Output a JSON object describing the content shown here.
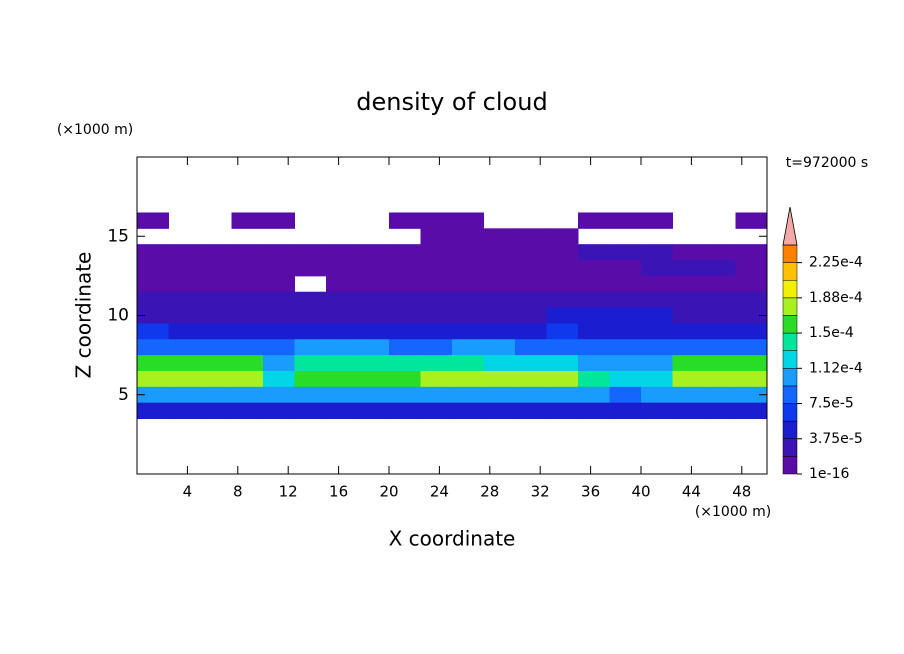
{
  "chart_data": {
    "type": "contour",
    "title": "density of cloud",
    "x_label": "X coordinate",
    "y_label": "Z coordinate",
    "x_unit": "(×1000 m)",
    "y_unit": "(×1000 m)",
    "annotation": "t=972000 s",
    "xlim": [
      0,
      50
    ],
    "ylim": [
      0,
      20
    ],
    "xticks": [
      4,
      8,
      12,
      16,
      20,
      24,
      28,
      32,
      36,
      40,
      44,
      48
    ],
    "yticks": [
      5,
      10,
      15
    ],
    "x": [
      1.25,
      3.75,
      6.25,
      8.75,
      11.25,
      13.75,
      16.25,
      18.75,
      21.25,
      23.75,
      26.25,
      28.75,
      31.25,
      33.75,
      36.25,
      38.75,
      41.25,
      43.75,
      46.25,
      48.75
    ],
    "z": [
      16,
      15,
      14,
      13,
      12,
      11,
      10,
      9,
      8,
      7,
      6,
      5,
      4
    ],
    "values": [
      [
        1e-05,
        null,
        null,
        1e-05,
        1e-05,
        null,
        null,
        null,
        1e-05,
        1e-05,
        1e-05,
        null,
        null,
        null,
        1e-05,
        1e-05,
        1e-05,
        null,
        null,
        1e-05
      ],
      [
        null,
        null,
        null,
        null,
        null,
        null,
        null,
        null,
        null,
        1e-05,
        1e-05,
        1e-05,
        1e-05,
        1e-05,
        null,
        null,
        null,
        null,
        null,
        null
      ],
      [
        1e-05,
        1e-05,
        1e-05,
        1e-05,
        1e-05,
        1e-05,
        1e-05,
        1e-05,
        1e-05,
        1e-05,
        1e-05,
        1e-05,
        1e-05,
        1e-05,
        2e-05,
        2e-05,
        2e-05,
        1e-05,
        1e-05,
        1e-05
      ],
      [
        1.2e-05,
        1.2e-05,
        1.2e-05,
        1.2e-05,
        1.2e-05,
        1.2e-05,
        1.2e-05,
        1.2e-05,
        1.2e-05,
        1.2e-05,
        1.2e-05,
        1.2e-05,
        1.2e-05,
        1.2e-05,
        1.2e-05,
        1.2e-05,
        2.5e-05,
        2.5e-05,
        2.5e-05,
        1.2e-05
      ],
      [
        1.5e-05,
        1.5e-05,
        1.5e-05,
        1.5e-05,
        1.5e-05,
        null,
        1.5e-05,
        1.5e-05,
        1.5e-05,
        1.5e-05,
        1.5e-05,
        1.5e-05,
        1.5e-05,
        1.5e-05,
        1.5e-05,
        1.5e-05,
        1.5e-05,
        1.5e-05,
        1.5e-05,
        1.5e-05
      ],
      [
        2e-05,
        2e-05,
        2e-05,
        2e-05,
        2e-05,
        2e-05,
        2e-05,
        2e-05,
        3e-05,
        3e-05,
        3e-05,
        3e-05,
        3e-05,
        2e-05,
        2e-05,
        2e-05,
        2e-05,
        2e-05,
        2e-05,
        2e-05
      ],
      [
        3e-05,
        3e-05,
        3e-05,
        3e-05,
        3e-05,
        3e-05,
        3e-05,
        3e-05,
        3e-05,
        3e-05,
        3e-05,
        3e-05,
        3e-05,
        5e-05,
        5e-05,
        5e-05,
        5e-05,
        3e-05,
        3e-05,
        3e-05
      ],
      [
        6e-05,
        4e-05,
        4e-05,
        4e-05,
        4e-05,
        4e-05,
        4e-05,
        4e-05,
        4e-05,
        4e-05,
        4e-05,
        4e-05,
        4e-05,
        7e-05,
        4e-05,
        4e-05,
        4e-05,
        4e-05,
        4e-05,
        4e-05
      ],
      [
        8e-05,
        8e-05,
        8e-05,
        8e-05,
        8e-05,
        0.0001,
        0.0001,
        0.0001,
        8e-05,
        8e-05,
        0.0001,
        0.0001,
        8e-05,
        8e-05,
        8e-05,
        8e-05,
        8e-05,
        8e-05,
        8e-05,
        8e-05
      ],
      [
        0.00015,
        0.00015,
        0.00015,
        0.00015,
        0.00011,
        0.00014,
        0.00014,
        0.00014,
        0.00014,
        0.00014,
        0.00014,
        0.00013,
        0.00013,
        0.00013,
        0.00011,
        0.0001,
        0.0001,
        0.00016,
        0.00016,
        0.00016
      ],
      [
        0.000175,
        0.000175,
        0.000175,
        0.000175,
        0.00013,
        0.00016,
        0.00016,
        0.00016,
        0.00016,
        0.000175,
        0.000175,
        0.000175,
        0.000175,
        0.000175,
        0.00014,
        0.00012,
        0.00013,
        0.00017,
        0.00017,
        0.00017
      ],
      [
        0.00011,
        0.00011,
        0.00011,
        0.00011,
        0.00011,
        0.00011,
        0.00011,
        0.00011,
        0.00011,
        0.00011,
        0.00011,
        0.00011,
        0.00011,
        0.00011,
        0.00011,
        8e-05,
        0.00011,
        0.00011,
        0.00011,
        0.00011
      ],
      [
        5e-05,
        5e-05,
        5e-05,
        5e-05,
        5e-05,
        5e-05,
        5e-05,
        5e-05,
        5e-05,
        5e-05,
        5e-05,
        5e-05,
        5e-05,
        5e-05,
        5e-05,
        5e-05,
        5e-05,
        5e-05,
        5e-05,
        5e-05
      ]
    ],
    "levels": [
      1e-16,
      1.875e-05,
      3.75e-05,
      5.625e-05,
      7.5e-05,
      9.375e-05,
      0.0001125,
      0.00013125,
      0.00015,
      0.00016875,
      0.0001875,
      0.00020625,
      0.000225,
      0.00024375
    ],
    "colors": [
      "#5a0ca8",
      "#3a14b4",
      "#1a1ed0",
      "#1038ec",
      "#1466ff",
      "#1a9cff",
      "#00d6e6",
      "#00e69a",
      "#28dc28",
      "#a8f01e",
      "#f0f000",
      "#ffc000",
      "#ff8000",
      "#ff2a00"
    ],
    "extend_color": "#f4a8a8",
    "colorbar_ticks": [
      {
        "value": 1e-16,
        "label": "1e-16"
      },
      {
        "value": 3.75e-05,
        "label": "3.75e-5"
      },
      {
        "value": 7.5e-05,
        "label": "7.5e-5"
      },
      {
        "value": 0.0001125,
        "label": "1.12e-4"
      },
      {
        "value": 0.00015,
        "label": "1.5e-4"
      },
      {
        "value": 0.0001875,
        "label": "1.88e-4"
      },
      {
        "value": 0.000225,
        "label": "2.25e-4"
      }
    ]
  }
}
